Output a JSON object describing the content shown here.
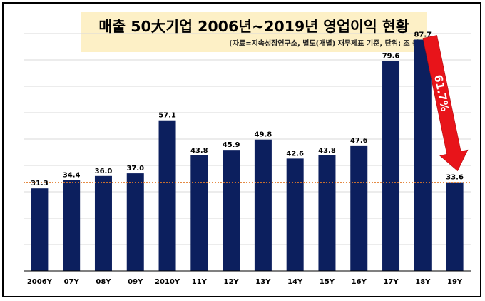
{
  "header": {
    "title": "매출 50大기업 2006년~2019년 영업이익 현황",
    "subtitle": "[자료=지속성장연구소, 별도(개별) 재무제표 기준, 단위: 조 원]"
  },
  "annotation": {
    "change_label": "61.7%"
  },
  "colors": {
    "bar": "#0c1f5e",
    "arrow": "#e8141a",
    "reference_line": "#e07b2c",
    "title_background": "#fdf0c6",
    "grid": "#d9d9d9"
  },
  "chart_data": {
    "type": "bar",
    "categories": [
      "2006Y",
      "07Y",
      "08Y",
      "09Y",
      "2010Y",
      "11Y",
      "12Y",
      "13Y",
      "14Y",
      "15Y",
      "16Y",
      "17Y",
      "18Y",
      "19Y"
    ],
    "values": [
      31.3,
      34.4,
      36.0,
      37.0,
      57.1,
      43.8,
      45.9,
      49.8,
      42.6,
      43.8,
      47.6,
      79.6,
      87.7,
      33.6
    ],
    "value_labels": [
      "31.3",
      "34.4",
      "36.0",
      "37.0",
      "57.1",
      "43.8",
      "45.9",
      "49.8",
      "42.6",
      "43.8",
      "47.6",
      "79.6",
      "87.7",
      "33.6"
    ],
    "ylim": [
      0,
      90
    ],
    "grid": true,
    "reference_line_value": 33.6,
    "xlabel": "",
    "ylabel": ""
  }
}
